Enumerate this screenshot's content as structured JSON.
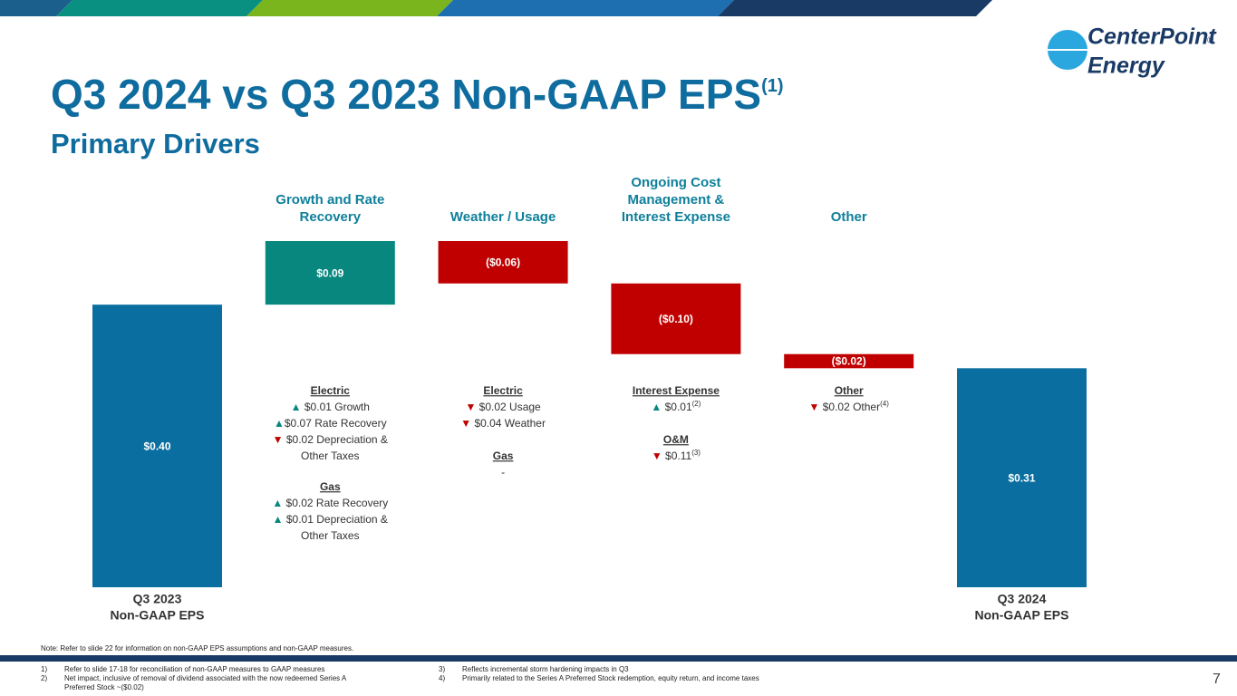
{
  "chart_data": {
    "type": "waterfall",
    "title": "Q3 2024 vs Q3 2023 Non-GAAP EPS",
    "title_sup": "(1)",
    "subtitle": "Primary  Drivers",
    "categories": [
      [
        "Q3 2023",
        "Non-GAAP EPS"
      ],
      [
        "Growth and Rate",
        "Recovery"
      ],
      [
        "Weather / Usage"
      ],
      [
        "Ongoing Cost",
        "Management &",
        "Interest Expense"
      ],
      [
        "Other"
      ],
      [
        "Q3 2024",
        "Non-GAAP EPS"
      ]
    ],
    "values": [
      0.4,
      0.09,
      -0.06,
      -0.1,
      -0.02,
      0.31
    ],
    "value_labels": [
      "$0.40",
      "$0.09",
      "($0.06)",
      "($0.10)",
      "($0.02)",
      "$0.31"
    ],
    "colors": [
      "#0a6fa0",
      "#08877f",
      "#c00000",
      "#c00000",
      "#c00000",
      "#0a6fa0"
    ],
    "details": [
      null,
      [
        {
          "heading": "Electric",
          "lines": [
            {
              "text": "▲ $0.01 Growth"
            },
            {
              "text": "▲$0.07 Rate Recovery"
            },
            {
              "text": "▼ $0.02 Depreciation &"
            },
            {
              "text": "Other Taxes"
            }
          ]
        },
        {
          "heading": "Gas",
          "lines": [
            {
              "text": "▲ $0.02 Rate Recovery"
            },
            {
              "text": "▲  $0.01 Depreciation &"
            },
            {
              "text": "Other Taxes"
            }
          ]
        }
      ],
      [
        {
          "heading": "Electric",
          "lines": [
            {
              "text": "▼ $0.02 Usage"
            },
            {
              "text": "▼ $0.04 Weather"
            }
          ]
        },
        {
          "heading": "Gas",
          "lines": [
            {
              "text": "-"
            }
          ]
        }
      ],
      [
        {
          "heading": "Interest Expense",
          "lines": [
            {
              "text": "▲ $0.01",
              "sup": "(2)"
            }
          ]
        },
        {
          "heading": "O&M",
          "lines": [
            {
              "text": "▼ $0.11",
              "sup": "(3)"
            }
          ]
        }
      ],
      [
        {
          "heading": "Other",
          "lines": [
            {
              "text": "▼ $0.02 Other",
              "sup": "(4)"
            }
          ]
        }
      ],
      null
    ],
    "note": "Note: Refer to slide 22 for information on non-GAAP EPS assumptions and non-GAAP measures.",
    "footnotes": [
      {
        "num": "1)",
        "lines": [
          "Refer to slide 17-18 for reconciliation of non-GAAP measures to GAAP measures"
        ]
      },
      {
        "num": "2)",
        "lines": [
          "Net impact, inclusive of removal of dividend associated with the now redeemed Series A",
          "Preferred Stock ~($0.02)"
        ]
      },
      {
        "num": "3)",
        "lines": [
          "Reflects incremental storm hardening impacts in Q3"
        ]
      },
      {
        "num": "4)",
        "lines": [
          "Primarily related to the Series A Preferred Stock redemption, equity return, and income taxes"
        ]
      }
    ],
    "logo": {
      "line1": "CenterPoint",
      "line2": "Energy",
      "mark": "®"
    },
    "page_number": "7"
  }
}
